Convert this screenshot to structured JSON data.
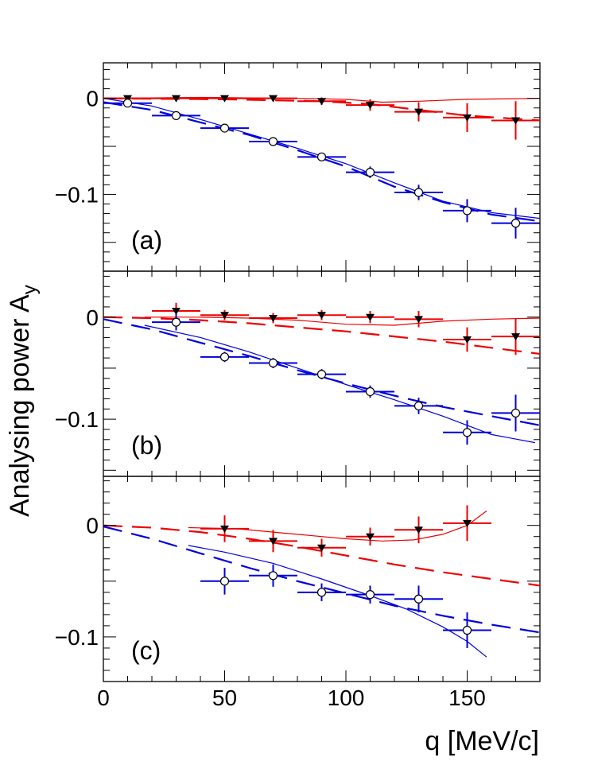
{
  "chart_data": {
    "type": "scatter",
    "x_axis": {
      "label": "q [MeV/c]",
      "range": [
        0,
        180
      ],
      "ticks": [
        0,
        50,
        100,
        150
      ],
      "tick_labels": [
        "0",
        "50",
        "100",
        "150"
      ]
    },
    "y_axis_label": "Analysing power A",
    "y_axis_label_subscript": "y",
    "colors": {
      "red": "#ee0000",
      "blue": "#0000dd",
      "black": "#000000"
    },
    "panels": [
      {
        "label": "(a)",
        "ylim": [
          -0.18,
          0.037
        ],
        "y_ticks": [
          0,
          -0.1
        ],
        "y_tick_labels": [
          "0",
          "−0.1"
        ],
        "red_points": [
          {
            "x": 10,
            "y": 0.0,
            "yerr": 0.002
          },
          {
            "x": 30,
            "y": 0.0,
            "yerr": 0.003
          },
          {
            "x": 50,
            "y": 0.0,
            "yerr": 0.003
          },
          {
            "x": 70,
            "y": 0.0,
            "yerr": 0.003
          },
          {
            "x": 90,
            "y": -0.003,
            "yerr": 0.004
          },
          {
            "x": 110,
            "y": -0.007,
            "yerr": 0.006
          },
          {
            "x": 130,
            "y": -0.014,
            "yerr": 0.01
          },
          {
            "x": 150,
            "y": -0.02,
            "yerr": 0.015
          },
          {
            "x": 170,
            "y": -0.023,
            "yerr": 0.02
          }
        ],
        "blue_points": [
          {
            "x": 10,
            "y": -0.005,
            "yerr": 0.003
          },
          {
            "x": 30,
            "y": -0.018,
            "yerr": 0.003
          },
          {
            "x": 50,
            "y": -0.031,
            "yerr": 0.003
          },
          {
            "x": 70,
            "y": -0.045,
            "yerr": 0.004
          },
          {
            "x": 90,
            "y": -0.061,
            "yerr": 0.004
          },
          {
            "x": 110,
            "y": -0.077,
            "yerr": 0.006
          },
          {
            "x": 130,
            "y": -0.098,
            "yerr": 0.008
          },
          {
            "x": 150,
            "y": -0.117,
            "yerr": 0.012
          },
          {
            "x": 170,
            "y": -0.13,
            "yerr": 0.016
          }
        ],
        "red_solid": [
          [
            0,
            0
          ],
          [
            40,
            0.001
          ],
          [
            80,
            0.0
          ],
          [
            100,
            -0.001
          ],
          [
            115,
            -0.004
          ],
          [
            130,
            -0.003
          ],
          [
            150,
            -0.001
          ],
          [
            180,
            0.0
          ]
        ],
        "red_dashed": [
          [
            0,
            0
          ],
          [
            50,
            -0.001
          ],
          [
            90,
            -0.003
          ],
          [
            110,
            -0.006
          ],
          [
            130,
            -0.012
          ],
          [
            150,
            -0.018
          ],
          [
            180,
            -0.023
          ]
        ],
        "blue_solid": [
          [
            0,
            0
          ],
          [
            20,
            -0.008
          ],
          [
            40,
            -0.022
          ],
          [
            60,
            -0.037
          ],
          [
            80,
            -0.052
          ],
          [
            100,
            -0.068
          ],
          [
            120,
            -0.088
          ],
          [
            140,
            -0.107
          ],
          [
            160,
            -0.119
          ],
          [
            180,
            -0.125
          ]
        ],
        "blue_dashed": [
          [
            0,
            -0.004
          ],
          [
            20,
            -0.012
          ],
          [
            40,
            -0.025
          ],
          [
            60,
            -0.038
          ],
          [
            80,
            -0.054
          ],
          [
            100,
            -0.071
          ],
          [
            120,
            -0.092
          ],
          [
            140,
            -0.108
          ],
          [
            160,
            -0.121
          ],
          [
            180,
            -0.128
          ]
        ]
      },
      {
        "label": "(b)",
        "ylim": [
          -0.156,
          0.045
        ],
        "y_ticks": [
          0,
          -0.1
        ],
        "y_tick_labels": [
          "0",
          "−0.1"
        ],
        "red_points": [
          {
            "x": 30,
            "y": 0.006,
            "yerr": 0.008
          },
          {
            "x": 50,
            "y": 0.002,
            "yerr": 0.005
          },
          {
            "x": 70,
            "y": -0.001,
            "yerr": 0.005
          },
          {
            "x": 90,
            "y": 0.002,
            "yerr": 0.005
          },
          {
            "x": 110,
            "y": 0.0,
            "yerr": 0.006
          },
          {
            "x": 130,
            "y": -0.002,
            "yerr": 0.008
          },
          {
            "x": 150,
            "y": -0.022,
            "yerr": 0.012
          },
          {
            "x": 170,
            "y": -0.019,
            "yerr": 0.018
          }
        ],
        "blue_points": [
          {
            "x": 30,
            "y": -0.005,
            "yerr": 0.008
          },
          {
            "x": 50,
            "y": -0.039,
            "yerr": 0.005
          },
          {
            "x": 70,
            "y": -0.045,
            "yerr": 0.005
          },
          {
            "x": 90,
            "y": -0.056,
            "yerr": 0.005
          },
          {
            "x": 110,
            "y": -0.073,
            "yerr": 0.006
          },
          {
            "x": 130,
            "y": -0.087,
            "yerr": 0.008
          },
          {
            "x": 150,
            "y": -0.113,
            "yerr": 0.012
          },
          {
            "x": 170,
            "y": -0.094,
            "yerr": 0.018
          }
        ],
        "red_solid": [
          [
            17,
            0.0
          ],
          [
            40,
            0.0
          ],
          [
            60,
            -0.001
          ],
          [
            80,
            -0.003
          ],
          [
            100,
            -0.007
          ],
          [
            120,
            -0.008
          ],
          [
            140,
            -0.004
          ],
          [
            160,
            -0.002
          ],
          [
            180,
            -0.001
          ]
        ],
        "red_dashed": [
          [
            0,
            0.0
          ],
          [
            20,
            -0.001
          ],
          [
            40,
            -0.003
          ],
          [
            60,
            -0.006
          ],
          [
            80,
            -0.01
          ],
          [
            100,
            -0.014
          ],
          [
            120,
            -0.019
          ],
          [
            140,
            -0.024
          ],
          [
            160,
            -0.03
          ],
          [
            180,
            -0.036
          ]
        ],
        "blue_solid": [
          [
            17,
            -0.008
          ],
          [
            40,
            -0.02
          ],
          [
            60,
            -0.034
          ],
          [
            80,
            -0.05
          ],
          [
            100,
            -0.066
          ],
          [
            120,
            -0.081
          ],
          [
            140,
            -0.097
          ],
          [
            160,
            -0.115
          ],
          [
            178,
            -0.123
          ]
        ],
        "blue_dashed": [
          [
            0,
            -0.002
          ],
          [
            20,
            -0.012
          ],
          [
            40,
            -0.025
          ],
          [
            60,
            -0.038
          ],
          [
            80,
            -0.052
          ],
          [
            100,
            -0.065
          ],
          [
            120,
            -0.077
          ],
          [
            140,
            -0.088
          ],
          [
            160,
            -0.097
          ],
          [
            180,
            -0.106
          ]
        ]
      },
      {
        "label": "(c)",
        "ylim": [
          -0.14,
          0.044
        ],
        "y_ticks": [
          0,
          -0.1
        ],
        "y_tick_labels": [
          "0",
          "−0.1"
        ],
        "red_points": [
          {
            "x": 50,
            "y": -0.003,
            "yerr": 0.012
          },
          {
            "x": 70,
            "y": -0.014,
            "yerr": 0.01
          },
          {
            "x": 90,
            "y": -0.02,
            "yerr": 0.008
          },
          {
            "x": 110,
            "y": -0.01,
            "yerr": 0.008
          },
          {
            "x": 130,
            "y": -0.004,
            "yerr": 0.012
          },
          {
            "x": 150,
            "y": 0.002,
            "yerr": 0.016
          }
        ],
        "blue_points": [
          {
            "x": 50,
            "y": -0.05,
            "yerr": 0.012
          },
          {
            "x": 70,
            "y": -0.045,
            "yerr": 0.01
          },
          {
            "x": 90,
            "y": -0.06,
            "yerr": 0.008
          },
          {
            "x": 110,
            "y": -0.062,
            "yerr": 0.008
          },
          {
            "x": 130,
            "y": -0.066,
            "yerr": 0.012
          },
          {
            "x": 150,
            "y": -0.094,
            "yerr": 0.016
          }
        ],
        "red_solid": [
          [
            35,
            -0.002
          ],
          [
            55,
            -0.003
          ],
          [
            70,
            -0.006
          ],
          [
            85,
            -0.009
          ],
          [
            100,
            -0.012
          ],
          [
            115,
            -0.014
          ],
          [
            128,
            -0.013
          ],
          [
            140,
            -0.008
          ],
          [
            150,
            0.0
          ],
          [
            158,
            0.013
          ]
        ],
        "red_dashed": [
          [
            0,
            0.0
          ],
          [
            20,
            -0.002
          ],
          [
            40,
            -0.006
          ],
          [
            60,
            -0.012
          ],
          [
            80,
            -0.019
          ],
          [
            100,
            -0.027
          ],
          [
            120,
            -0.035
          ],
          [
            140,
            -0.042
          ],
          [
            160,
            -0.048
          ],
          [
            180,
            -0.054
          ]
        ],
        "blue_solid": [
          [
            35,
            -0.018
          ],
          [
            50,
            -0.024
          ],
          [
            70,
            -0.034
          ],
          [
            90,
            -0.048
          ],
          [
            110,
            -0.063
          ],
          [
            125,
            -0.075
          ],
          [
            140,
            -0.091
          ],
          [
            150,
            -0.104
          ],
          [
            158,
            -0.118
          ]
        ],
        "blue_dashed": [
          [
            0,
            -0.001
          ],
          [
            20,
            -0.012
          ],
          [
            40,
            -0.025
          ],
          [
            60,
            -0.038
          ],
          [
            80,
            -0.05
          ],
          [
            100,
            -0.061
          ],
          [
            120,
            -0.072
          ],
          [
            140,
            -0.081
          ],
          [
            160,
            -0.089
          ],
          [
            180,
            -0.096
          ]
        ]
      }
    ]
  }
}
